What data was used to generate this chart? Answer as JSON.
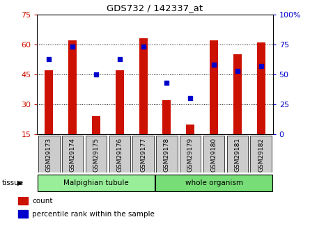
{
  "title": "GDS732 / 142337_at",
  "samples": [
    "GSM29173",
    "GSM29174",
    "GSM29175",
    "GSM29176",
    "GSM29177",
    "GSM29178",
    "GSM29179",
    "GSM29180",
    "GSM29181",
    "GSM29182"
  ],
  "counts": [
    47,
    62,
    24,
    47,
    63,
    32,
    20,
    62,
    55,
    61
  ],
  "percentile": [
    63,
    73,
    50,
    63,
    73,
    43,
    30,
    58,
    53,
    57
  ],
  "ylim_left": [
    15,
    75
  ],
  "ylim_right": [
    0,
    100
  ],
  "yticks_left": [
    15,
    30,
    45,
    60,
    75
  ],
  "yticks_right": [
    0,
    25,
    50,
    75,
    100
  ],
  "bar_color": "#cc1100",
  "dot_color": "#0000cc",
  "tissue_groups": [
    {
      "label": "Malpighian tubule",
      "start": 0,
      "end": 5,
      "color": "#99ee99"
    },
    {
      "label": "whole organism",
      "start": 5,
      "end": 10,
      "color": "#77dd77"
    }
  ],
  "legend_items": [
    {
      "label": "count",
      "color": "#cc1100"
    },
    {
      "label": "percentile rank within the sample",
      "color": "#0000cc"
    }
  ],
  "tissue_label": "tissue",
  "bar_width": 0.35,
  "baseline": 15,
  "grid_yticks": [
    30,
    45,
    60
  ],
  "xtick_bg_color": "#cccccc",
  "border_color": "#000000"
}
